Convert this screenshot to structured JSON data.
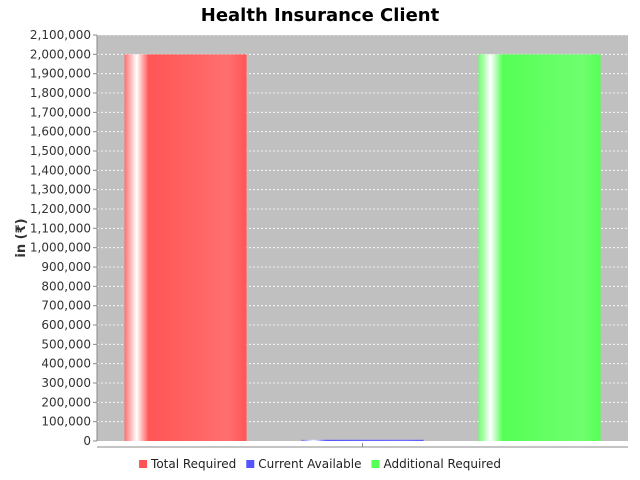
{
  "chart_data": {
    "type": "bar",
    "title": "Health Insurance Client",
    "xlabel": "",
    "ylabel": "in (₹)",
    "ylim": [
      0,
      2100000
    ],
    "ytick_step": 100000,
    "grid": true,
    "legend_position": "bottom",
    "plot_background": "#c0c0c0",
    "categories": [
      "Total Required",
      "Current Available",
      "Additional Required"
    ],
    "series": [
      {
        "name": "Total Required",
        "color": "#ff5555",
        "value": 2000000
      },
      {
        "name": "Current Available",
        "color": "#5555ff",
        "value": 0
      },
      {
        "name": "Additional Required",
        "color": "#55ff55",
        "value": 2000000
      }
    ]
  }
}
